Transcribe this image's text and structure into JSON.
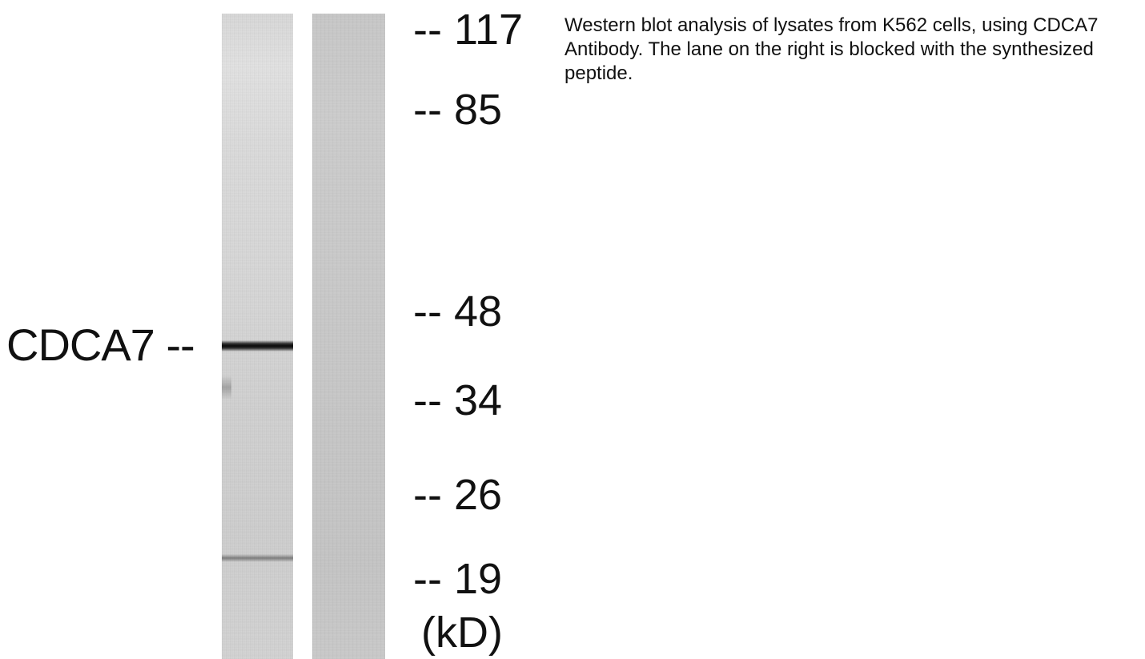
{
  "band_label": "CDCA7 --",
  "markers": [
    {
      "label": "-- 117",
      "kd": 117
    },
    {
      "label": "-- 85",
      "kd": 85
    },
    {
      "label": "-- 48",
      "kd": 48
    },
    {
      "label": "-- 34",
      "kd": 34
    },
    {
      "label": "-- 26",
      "kd": 26
    },
    {
      "label": "-- 19",
      "kd": 19
    }
  ],
  "unit": "(kD)",
  "caption": "Western blot analysis of lysates from K562 cells, using CDCA7 Antibody. The lane on the right is blocked with the synthesized peptide.",
  "colors": {
    "band": "#0a0a0a",
    "lane_left": "#d9d9d9",
    "lane_right": "#c9c9c9",
    "text": "#111111"
  }
}
